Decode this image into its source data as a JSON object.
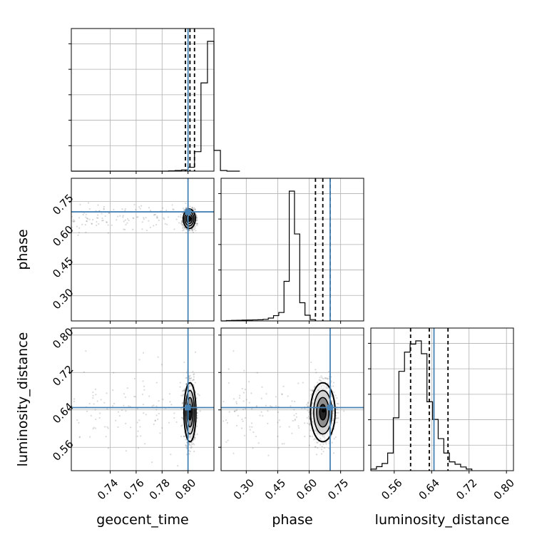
{
  "chart_data": {
    "type": "corner",
    "parameters": [
      "geocent_time",
      "phase",
      "luminosity_distance"
    ],
    "truths": {
      "geocent_time": 0.8,
      "phase": 0.7,
      "luminosity_distance": 0.645
    },
    "truth_color": "#4682b4",
    "line_color": "#000000",
    "grid": true,
    "ranges": {
      "geocent_time": [
        0.71,
        0.82
      ],
      "phase": [
        0.18,
        0.86
      ],
      "luminosity_distance": [
        0.51,
        0.815
      ]
    },
    "ticks": {
      "geocent_time": {
        "values": [
          0.74,
          0.76,
          0.78,
          0.8
        ],
        "labels": [
          "0.74",
          "0.76",
          "0.78",
          "0.80"
        ]
      },
      "phase": {
        "values": [
          0.3,
          0.45,
          0.6,
          0.75
        ],
        "labels": [
          "0.30",
          "0.45",
          "0.60",
          "0.75"
        ]
      },
      "luminosity_distance": {
        "values": [
          0.56,
          0.64,
          0.72,
          0.8
        ],
        "labels": [
          "0.56",
          "0.64",
          "0.72",
          "0.80"
        ]
      }
    },
    "quantiles": {
      "geocent_time": [
        0.798,
        0.8015,
        0.805
      ],
      "phase": [
        0.63,
        0.665,
        0.7
      ],
      "luminosity_distance": [
        0.595,
        0.635,
        0.675
      ]
    },
    "histograms": {
      "geocent_time": {
        "bin_start": 0.71,
        "bin_width": 0.005,
        "counts": [
          0,
          0,
          0,
          0,
          0,
          0,
          0,
          0,
          0,
          0,
          0,
          0,
          0,
          0,
          0,
          0.2,
          0.5,
          0.9,
          3,
          15,
          68,
          100,
          16,
          0.5,
          0,
          0
        ]
      },
      "phase": {
        "bin_start": 0.18,
        "bin_width": 0.025,
        "counts": [
          0,
          0.3,
          0.4,
          0.5,
          0.6,
          0.7,
          0.8,
          0.9,
          1.2,
          2.2,
          4.1,
          6.5,
          30.5,
          100,
          67,
          14,
          4.4,
          1
        ]
      },
      "luminosity_distance": {
        "bin_start": 0.51,
        "bin_width": 0.012,
        "counts": [
          1,
          2.5,
          4.5,
          11,
          33,
          62,
          74,
          79,
          81,
          73,
          43,
          32,
          20,
          11,
          5.5,
          4,
          2.3,
          1
        ]
      }
    },
    "scatter_2d": [
      {
        "x": "geocent_time",
        "y": "phase",
        "center": [
          0.801,
          0.667
        ],
        "spread": [
          0.0022,
          0.022
        ],
        "peak": [
          0.8015,
          0.667
        ]
      },
      {
        "x": "geocent_time",
        "y": "luminosity_distance",
        "center": [
          0.8015,
          0.635
        ],
        "spread": [
          0.0022,
          0.03
        ],
        "peak": [
          0.8015,
          0.638
        ]
      },
      {
        "x": "phase",
        "y": "luminosity_distance",
        "center": [
          0.665,
          0.635
        ],
        "spread": [
          0.028,
          0.03
        ],
        "peak": [
          0.668,
          0.638
        ]
      }
    ],
    "x_axis_labels": [
      "geocent_time",
      "phase",
      "luminosity_distance"
    ],
    "y_axis_labels": [
      "phase",
      "luminosity_distance"
    ]
  }
}
